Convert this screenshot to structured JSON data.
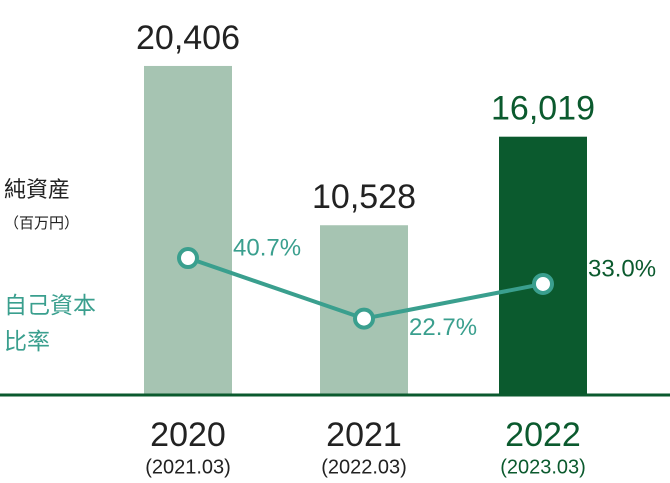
{
  "chart_data": {
    "type": "bar_line",
    "categories": [
      "2020",
      "2021",
      "2022"
    ],
    "category_sublabels": [
      "(2021.03)",
      "(2022.03)",
      "(2023.03)"
    ],
    "series": [
      {
        "name": "純資産",
        "unit": "（百万円）",
        "type": "bar",
        "colors": [
          "#a6c4b2",
          "#a6c4b2",
          "#0b5a2e"
        ],
        "values": [
          20406,
          10528,
          16019
        ],
        "value_labels": [
          "20,406",
          "10,528",
          "16,019"
        ]
      },
      {
        "name": "自己資本比率",
        "type": "line",
        "axis": "y2",
        "color": "#3a9f8e",
        "values": [
          40.7,
          22.7,
          33.0
        ],
        "value_labels": [
          "40.7%",
          "22.7%",
          "33.0%"
        ]
      }
    ],
    "highlight": 2,
    "highlight_color": "#0b5a2e",
    "ylim": [
      0,
      24000
    ],
    "y2lim": [
      0,
      115
    ]
  }
}
